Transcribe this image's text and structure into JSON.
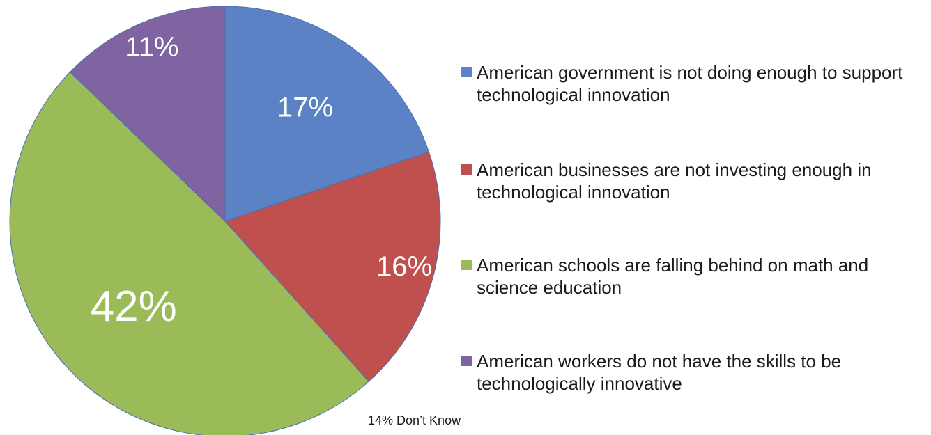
{
  "chart_data": {
    "type": "pie",
    "title": "",
    "slices": [
      {
        "label": "American government is not doing enough to support technological innovation",
        "value": 17,
        "display": "17%",
        "color": "#5b82c4"
      },
      {
        "label": "American businesses are not investing enough in technological innovation",
        "value": 16,
        "display": "16%",
        "color": "#c0504d"
      },
      {
        "label": "American schools are falling behind on math and science education",
        "value": 42,
        "display": "42%",
        "color": "#9bbb59"
      },
      {
        "label": "American workers do not have the skills to be technologically innovative",
        "value": 11,
        "display": "11%",
        "color": "#8064a2"
      }
    ],
    "legend_position": "right",
    "legend": [
      "American government is not doing enough to support technological innovation",
      "American businesses are not investing enough in technological innovation",
      "American schools are falling behind on math and science education",
      "American workers do not have the skills to be technologically innovative"
    ],
    "annotation": "14% Don’t Know"
  }
}
